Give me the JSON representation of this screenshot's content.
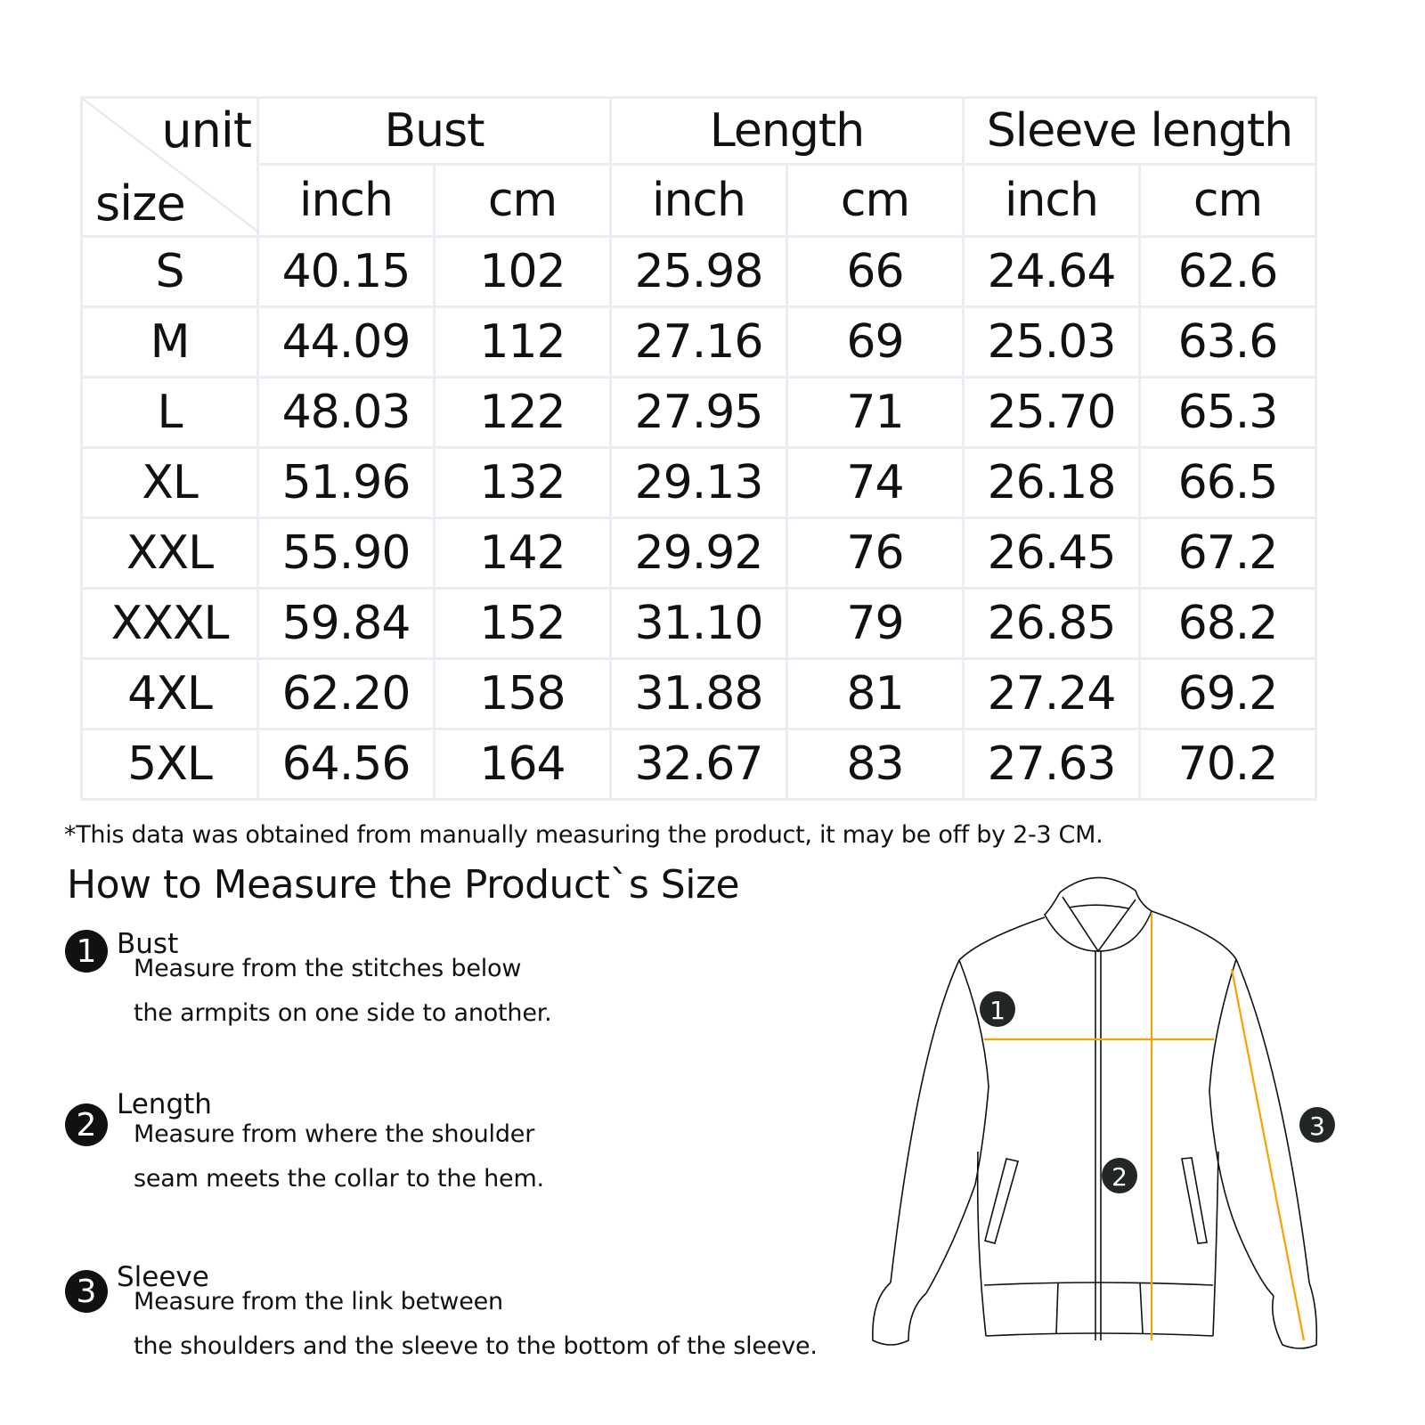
{
  "table": {
    "corner": {
      "unit": "unit",
      "size": "size"
    },
    "groups": [
      "Bust",
      "Length",
      "Sleeve length"
    ],
    "units": [
      "inch",
      "cm",
      "inch",
      "cm",
      "inch",
      "cm"
    ],
    "rows": [
      {
        "size": "S",
        "values": [
          "40.15",
          "102",
          "25.98",
          "66",
          "24.64",
          "62.6"
        ]
      },
      {
        "size": "M",
        "values": [
          "44.09",
          "112",
          "27.16",
          "69",
          "25.03",
          "63.6"
        ]
      },
      {
        "size": "L",
        "values": [
          "48.03",
          "122",
          "27.95",
          "71",
          "25.70",
          "65.3"
        ]
      },
      {
        "size": "XL",
        "values": [
          "51.96",
          "132",
          "29.13",
          "74",
          "26.18",
          "66.5"
        ]
      },
      {
        "size": "XXL",
        "values": [
          "55.90",
          "142",
          "29.92",
          "76",
          "26.45",
          "67.2"
        ]
      },
      {
        "size": "XXXL",
        "values": [
          "59.84",
          "152",
          "31.10",
          "79",
          "26.85",
          "68.2"
        ]
      },
      {
        "size": "4XL",
        "values": [
          "62.20",
          "158",
          "31.88",
          "81",
          "27.24",
          "69.2"
        ]
      },
      {
        "size": "5XL",
        "values": [
          "64.56",
          "164",
          "32.67",
          "83",
          "27.63",
          "70.2"
        ]
      }
    ]
  },
  "note": "*This data was obtained from manually measuring the product, it may be off by 2-3 CM.",
  "title": "How to Measure the Product`s Size",
  "measures": [
    {
      "num": "1",
      "label": "Bust",
      "lines": [
        "Measure from the stitches below",
        "the armpits on one side to another."
      ]
    },
    {
      "num": "2",
      "label": "Length",
      "lines": [
        "Measure from where the shoulder",
        "seam meets the collar to the hem."
      ]
    },
    {
      "num": "3",
      "label": "Sleeve",
      "lines": [
        "Measure from the link between",
        "the shoulders and the sleeve to the bottom of the sleeve."
      ]
    }
  ],
  "colors": {
    "measure_line": "#f5a300",
    "grid": "#eaeef2",
    "badge": "#111111"
  }
}
